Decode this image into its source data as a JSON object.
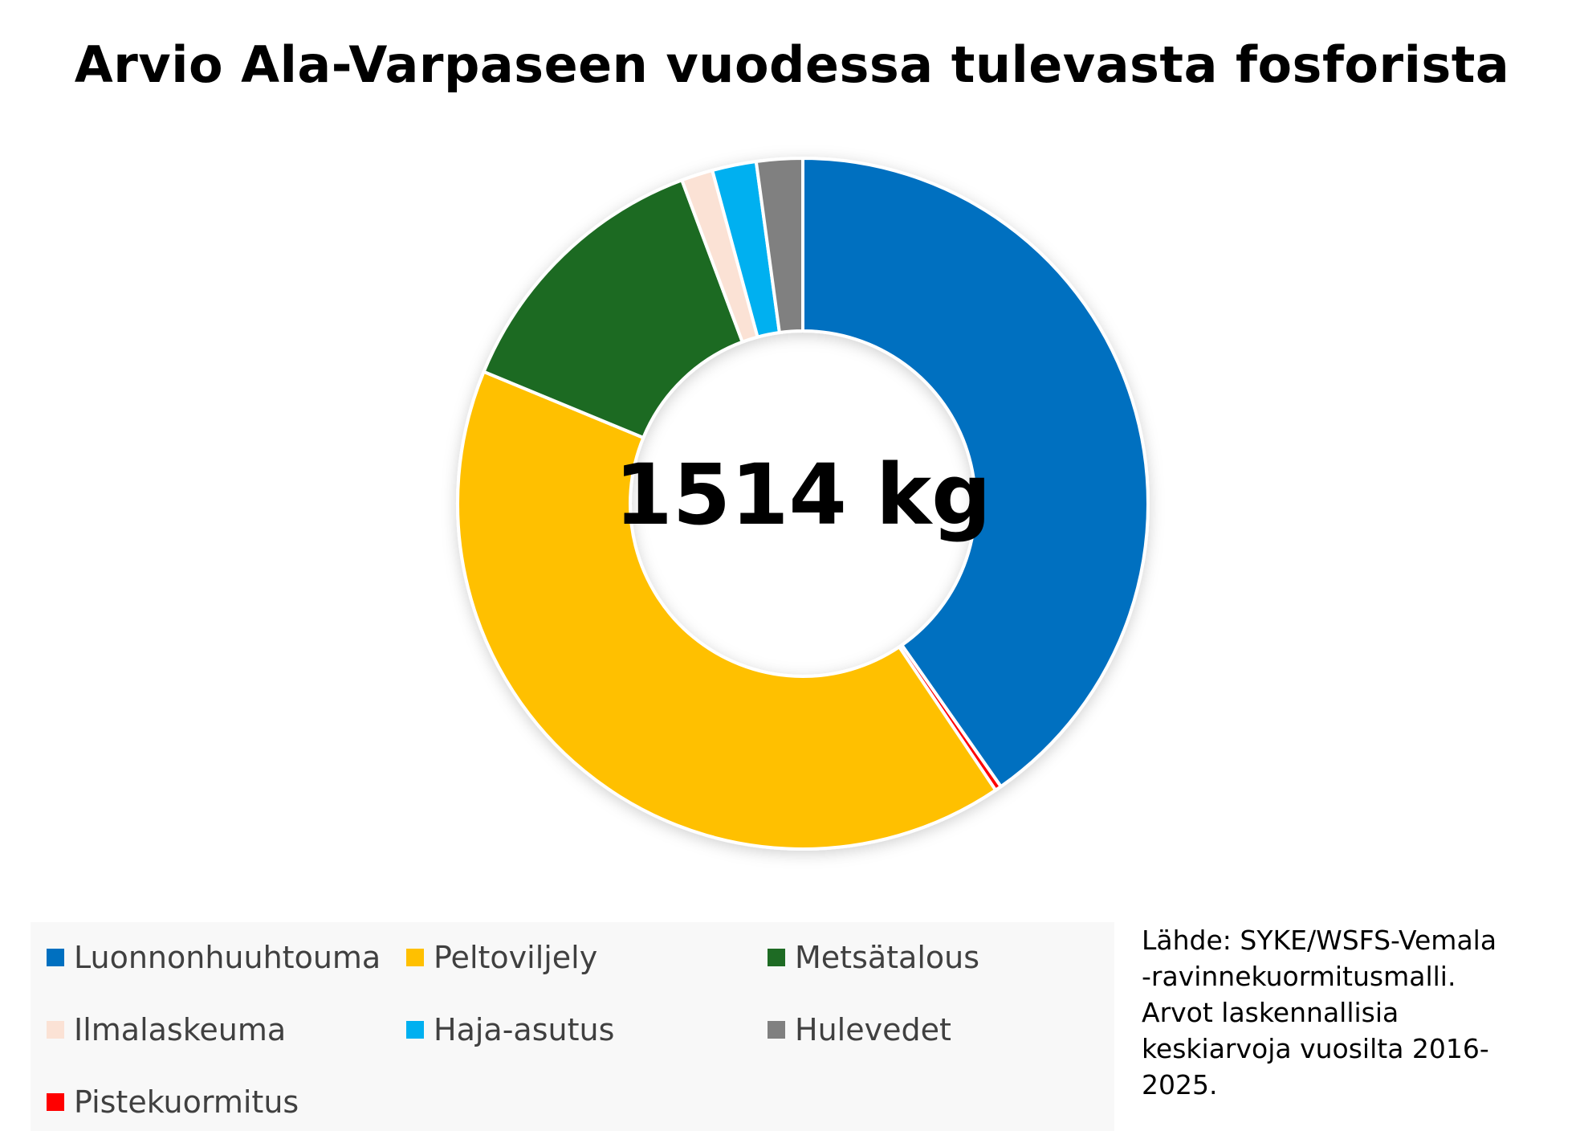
{
  "chart_data": {
    "type": "pie",
    "variant": "donut",
    "title": "Arvio Ala-Varpaseen vuodessa tulevasta fosforista",
    "center_label": "1514 kg",
    "legend_position": "bottom",
    "series": [
      {
        "name": "Luonnonhuuhtouma",
        "value": 41.0,
        "color": "#0070C0"
      },
      {
        "name": "Pistekuormitus",
        "value": 0.3,
        "color": "#FF0000"
      },
      {
        "name": "Peltoviljely",
        "value": 41.4,
        "color": "#FFC000"
      },
      {
        "name": "Metsätalous",
        "value": 13.3,
        "color": "#1E6B24"
      },
      {
        "name": "Ilmalaskeuma",
        "value": 1.5,
        "color": "#FBE2D5"
      },
      {
        "name": "Haja-asutus",
        "value": 2.1,
        "color": "#00B0F0"
      },
      {
        "name": "Hulevedet",
        "value": 2.2,
        "color": "#808080"
      }
    ]
  },
  "legend": {
    "items": [
      {
        "label": "Luonnonhuuhtouma",
        "color": "#0070C0"
      },
      {
        "label": "Peltoviljely",
        "color": "#FFC000"
      },
      {
        "label": "Metsätalous",
        "color": "#1E6B24"
      },
      {
        "label": "Ilmalaskeuma",
        "color": "#FBE2D5"
      },
      {
        "label": "Haja-asutus",
        "color": "#00B0F0"
      },
      {
        "label": "Hulevedet",
        "color": "#808080"
      },
      {
        "label": "Pistekuormitus",
        "color": "#FF0000"
      }
    ]
  },
  "source": {
    "lines": [
      "Lähde: SYKE/WSFS-Vemala",
      "-ravinnekuormitusmalli.",
      "Arvot laskennallisia",
      "keskiarvoja vuosilta 2016-",
      "2025."
    ]
  }
}
